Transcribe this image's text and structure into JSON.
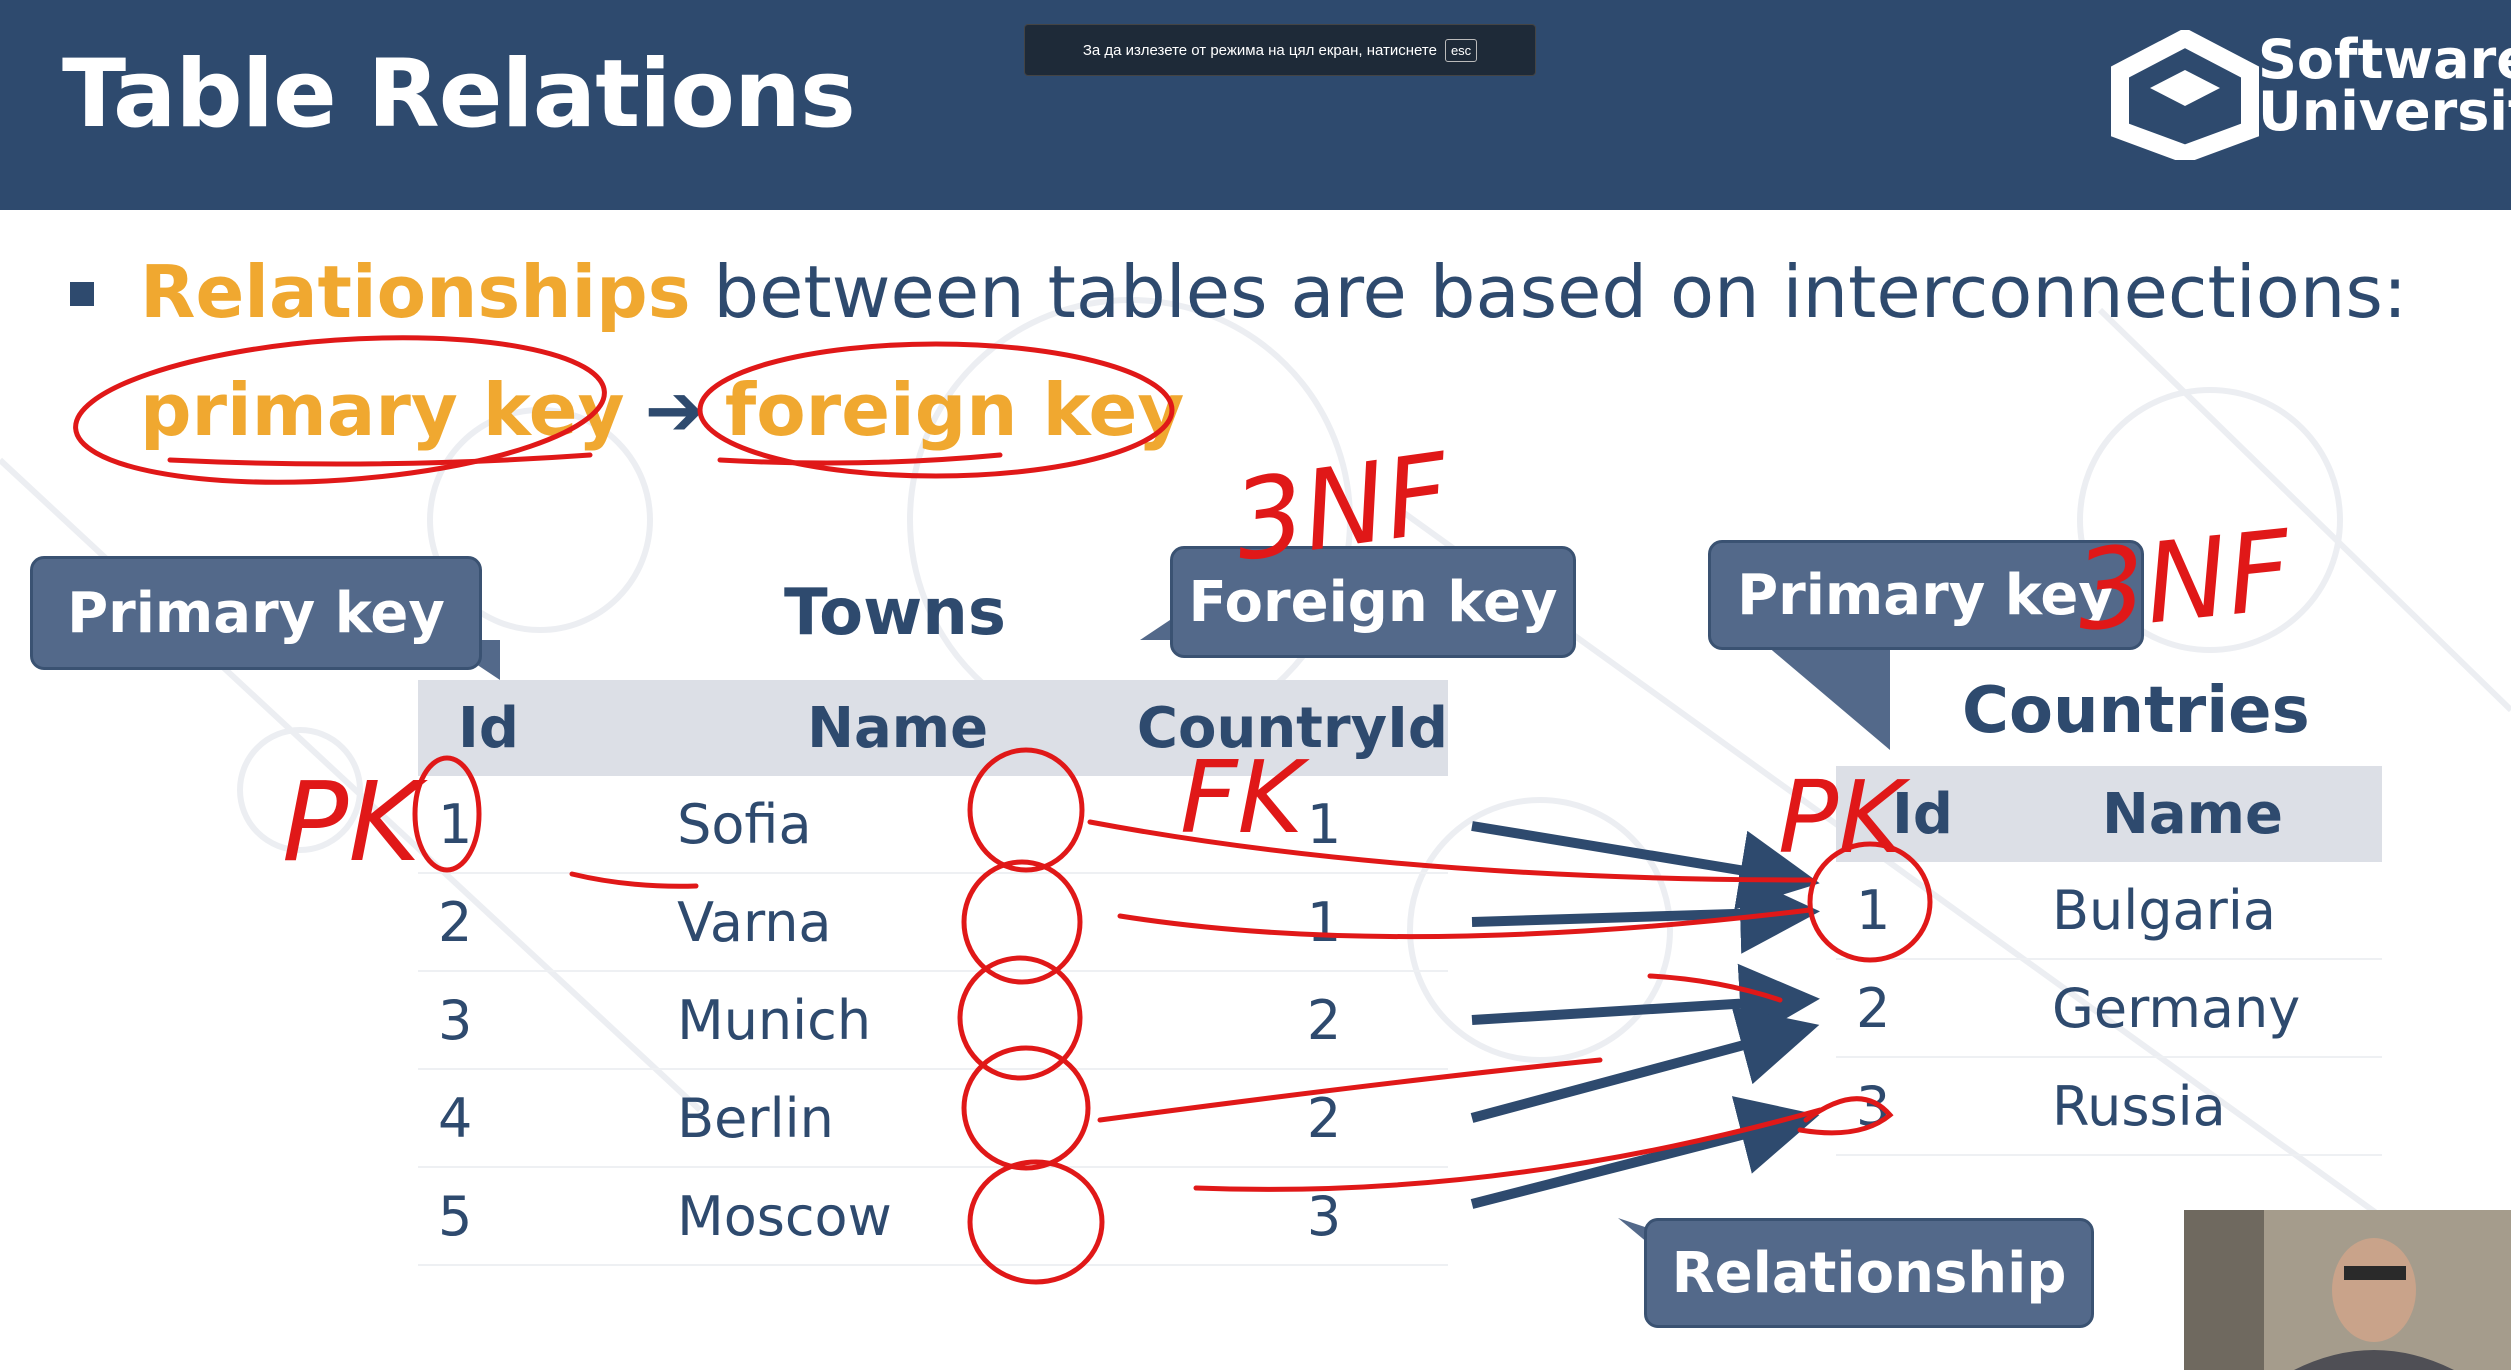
{
  "slide": {
    "title": "Table Relations",
    "bullet": {
      "highlight": "Relationships",
      "rest": " between tables are based on interconnections:",
      "primary": "primary key",
      "foreign": "foreign key"
    }
  },
  "fullscreen_notice": {
    "text": "За да излезете от режима на цял екран, натиснете",
    "key": "esc"
  },
  "logo": {
    "line1": "Software",
    "line2": "University"
  },
  "callouts": {
    "primary_key_left": "Primary key",
    "foreign_key": "Foreign key",
    "primary_key_right": "Primary key",
    "relationship": "Relationship"
  },
  "towns": {
    "name": "Towns",
    "headers": [
      "Id",
      "Name",
      "CountryId"
    ],
    "rows": [
      [
        "1",
        "Sofia",
        "1"
      ],
      [
        "2",
        "Varna",
        "1"
      ],
      [
        "3",
        "Munich",
        "2"
      ],
      [
        "4",
        "Berlin",
        "2"
      ],
      [
        "5",
        "Moscow",
        "3"
      ]
    ]
  },
  "countries": {
    "name": "Countries",
    "headers": [
      "Id",
      "Name"
    ],
    "rows": [
      [
        "1",
        "Bulgaria"
      ],
      [
        "2",
        "Germany"
      ],
      [
        "3",
        "Russia"
      ]
    ]
  },
  "annotations": {
    "nf_left": "3NF",
    "nf_right": "3NF",
    "pk_left": "PK",
    "pk_right": "PK",
    "fk": "FK"
  },
  "colors": {
    "header_bg": "#2e4a6e",
    "accent": "#f0a830",
    "callout": "#53698a",
    "ink": "#e01818"
  }
}
